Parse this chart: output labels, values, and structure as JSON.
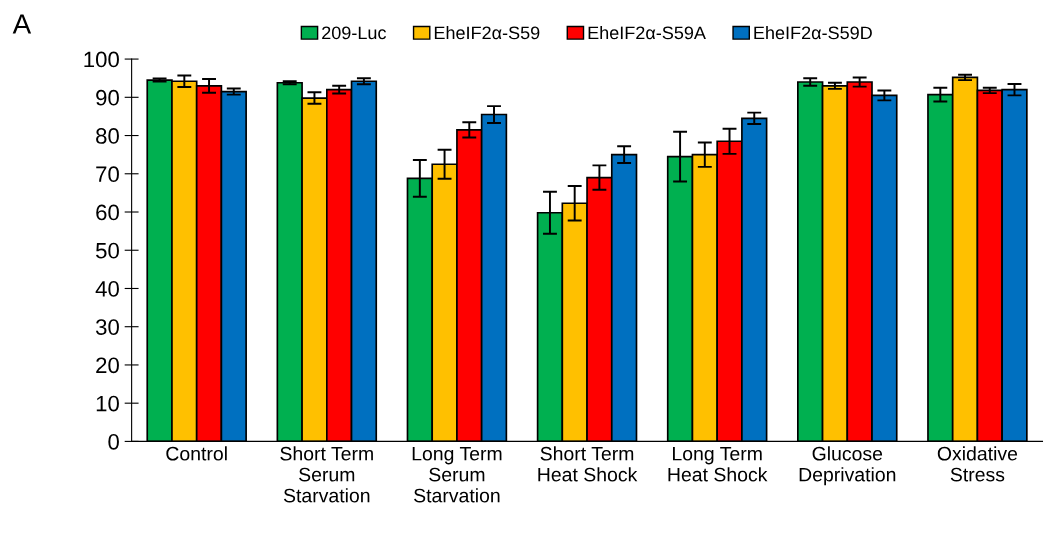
{
  "chart_data": {
    "type": "bar",
    "categories": [
      "Control",
      "Short Term\nSerum\nStarvation",
      "Long Term\nSerum\nStarvation",
      "Short Term\nHeat Shock",
      "Long Term\nHeat Shock",
      "Glucose\nDeprivation",
      "Oxidative\nStress"
    ],
    "series": [
      {
        "name": "209-Luc",
        "color": "#00b050",
        "values": [
          94.5,
          93.8,
          68.8,
          59.8,
          74.5,
          94,
          90.7
        ],
        "errors": [
          0.4,
          0.4,
          4.8,
          5.5,
          6.5,
          1,
          1.8
        ]
      },
      {
        "name": "EheIF2α-S59",
        "color": "#ffc000",
        "values": [
          94.2,
          89.8,
          72.5,
          62.3,
          75,
          93,
          95.2
        ],
        "errors": [
          1.5,
          1.5,
          3.8,
          4.5,
          3.2,
          0.8,
          0.7
        ]
      },
      {
        "name": "EheIF2α-S59A",
        "color": "#ff0000",
        "values": [
          93,
          92,
          81.5,
          69,
          78.5,
          94,
          91.8
        ],
        "errors": [
          1.8,
          1,
          2,
          3.2,
          3.3,
          1.2,
          0.7
        ]
      },
      {
        "name": "EheIF2α-S59D",
        "color": "#0070c0",
        "values": [
          91.5,
          94.2,
          85.5,
          75,
          84.5,
          90.5,
          92
        ],
        "errors": [
          0.8,
          0.8,
          2.2,
          2.2,
          1.5,
          1.3,
          1.5
        ]
      }
    ],
    "ylim": [
      0,
      100
    ],
    "yticks": [
      0,
      10,
      20,
      30,
      40,
      50,
      60,
      70,
      80,
      90,
      100
    ],
    "grid": false,
    "legend": "top",
    "annotations": [
      "A"
    ]
  }
}
